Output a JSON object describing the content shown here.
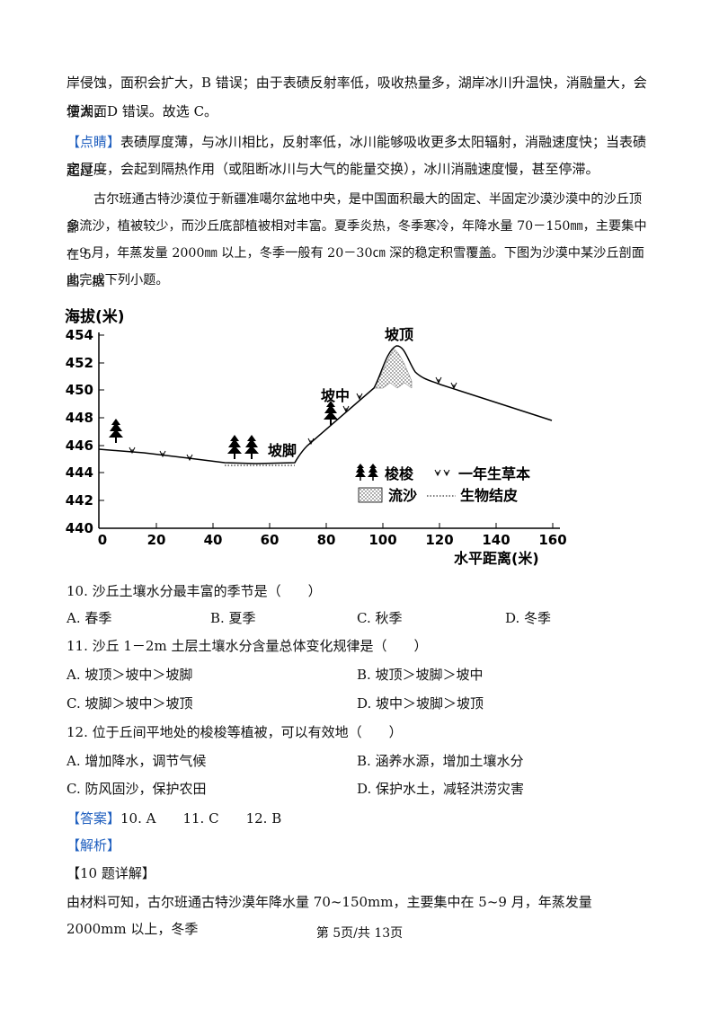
{
  "paragraphs": {
    "p1_line1": "岸侵蚀，面积会扩大，B 错误；由于表碛反射率低，吸收热量多，湖岸冰川升温快，消融量大，会使湖面",
    "p1_line2": "增大，D 错误。故选 C。",
    "tip_label": "【点睛】",
    "tip_line1": "表碛厚度薄，与冰川相比，反射率低，冰川能够吸收更多太阳辐射，消融速度快；当表碛超过一",
    "tip_line2": "定厚度，会起到隔热作用（或阻断冰川与大气的能量交换），冰川消融速度慢，甚至停滞。",
    "material_line1": "古尔班通古特沙漠位于新疆准噶尔盆地中央，是中国面积最大的固定、半固定沙漠沙漠中的沙丘顶部",
    "material_line2": "多流沙，植被较少，而沙丘底部植被相对丰富。夏季炎热，冬季寒冷，年降水量 70－150㎜，主要集中在 5",
    "material_line3": "－9 月，年蒸发量 2000㎜ 以上，冬季一般有 20－30㎝ 深的稳定积雪覆盖。下图为沙漠中某沙丘剖面图，据",
    "material_line4": "此完成下列小题。"
  },
  "figure": {
    "y_axis_title": "海拔(米)",
    "x_axis_title": "水平距离(米)",
    "y_ticks": [
      "454",
      "452",
      "450",
      "448",
      "446",
      "444",
      "442",
      "440"
    ],
    "x_ticks": [
      "0",
      "20",
      "40",
      "60",
      "80",
      "100",
      "120",
      "140",
      "160"
    ],
    "label_top": "坡顶",
    "label_mid": "坡中",
    "label_foot": "坡脚",
    "legend_tree": "梭梭",
    "legend_grass": "一年生草本",
    "legend_sand": "流沙",
    "legend_crust": "生物结皮"
  },
  "questions": [
    {
      "stem": "10. 沙丘土壤水分最丰富的季节是（　　）",
      "options": [
        "A. 春季",
        "B. 夏季",
        "C. 秋季",
        "D. 冬季"
      ]
    },
    {
      "stem": "11. 沙丘 1－2m 土层土壤水分含量总体变化规律是（　　）",
      "options": [
        "A. 坡顶＞坡中＞坡脚",
        "B. 坡顶＞坡脚＞坡中",
        "C. 坡脚＞坡中＞坡顶",
        "D. 坡中＞坡脚＞坡顶"
      ]
    },
    {
      "stem": "12. 位于丘间平地处的梭梭等植被，可以有效地（　　）",
      "options": [
        "A. 增加降水，调节气候",
        "B. 涵养水源，增加土壤水分",
        "C. 防风固沙，保护农田",
        "D. 保护水土，减轻洪涝灾害"
      ]
    }
  ],
  "answer": {
    "label": "【答案】",
    "text": "10. A　　11. C　　12. B"
  },
  "analysis": {
    "label": "【解析】",
    "sub_label": "【10 题详解】",
    "line1": "由材料可知，古尔班通古特沙漠年降水量 70~150mm，主要集中在 5~9 月，年蒸发量 2000mm 以上，冬季"
  },
  "footer": "第 5页/共 13页"
}
